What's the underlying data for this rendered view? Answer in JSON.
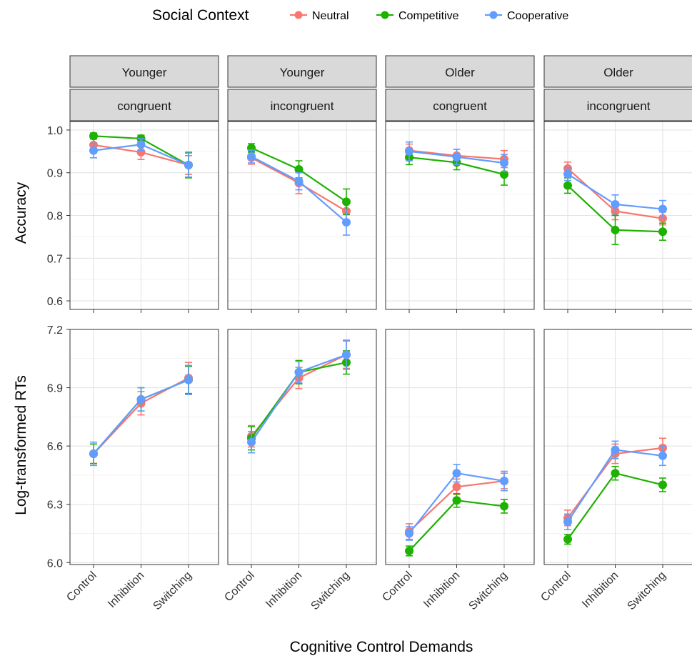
{
  "legend": {
    "title": "Social Context",
    "entries": [
      {
        "name": "Neutral",
        "color": "#F8766D"
      },
      {
        "name": "Competitive",
        "color": "#1DB100"
      },
      {
        "name": "Cooperative",
        "color": "#619CFF"
      }
    ]
  },
  "chart_data": {
    "type": "line",
    "xlabel": "Cognitive Control Demands",
    "categories": [
      "Control",
      "Inhibition",
      "Switching"
    ],
    "facet_columns": [
      {
        "group": "Younger",
        "condition": "congruent"
      },
      {
        "group": "Younger",
        "condition": "incongruent"
      },
      {
        "group": "Older",
        "condition": "congruent"
      },
      {
        "group": "Older",
        "condition": "incongruent"
      }
    ],
    "rows": [
      {
        "ylabel": "Accuracy",
        "ylim": [
          0.58,
          1.02
        ],
        "ticks": [
          "0.6",
          "0.7",
          "0.8",
          "0.9",
          "1.0"
        ],
        "tick_values": [
          0.6,
          0.7,
          0.8,
          0.9,
          1.0
        ],
        "panels": [
          {
            "series": [
              {
                "name": "Neutral",
                "values": [
                  0.965,
                  0.948,
                  0.918
                ],
                "err": [
                  0.018,
                  0.017,
                  0.022
                ]
              },
              {
                "name": "Competitive",
                "values": [
                  0.986,
                  0.98,
                  0.918
                ],
                "err": [
                  0.007,
                  0.008,
                  0.03
                ]
              },
              {
                "name": "Cooperative",
                "values": [
                  0.952,
                  0.966,
                  0.918
                ],
                "err": [
                  0.017,
                  0.014,
                  0.028
                ]
              }
            ]
          },
          {
            "series": [
              {
                "name": "Neutral",
                "values": [
                  0.935,
                  0.876,
                  0.81
                ],
                "err": [
                  0.015,
                  0.025,
                  0.022
                ]
              },
              {
                "name": "Competitive",
                "values": [
                  0.958,
                  0.908,
                  0.832
                ],
                "err": [
                  0.01,
                  0.02,
                  0.03
                ]
              },
              {
                "name": "Cooperative",
                "values": [
                  0.938,
                  0.88,
                  0.784
                ],
                "err": [
                  0.015,
                  0.02,
                  0.03
                ]
              }
            ]
          },
          {
            "series": [
              {
                "name": "Neutral",
                "values": [
                  0.952,
                  0.94,
                  0.932
                ],
                "err": [
                  0.015,
                  0.015,
                  0.02
                ]
              },
              {
                "name": "Competitive",
                "values": [
                  0.936,
                  0.924,
                  0.896
                ],
                "err": [
                  0.017,
                  0.017,
                  0.025
                ]
              },
              {
                "name": "Cooperative",
                "values": [
                  0.95,
                  0.937,
                  0.923
                ],
                "err": [
                  0.022,
                  0.018,
                  0.02
                ]
              }
            ]
          },
          {
            "series": [
              {
                "name": "Neutral",
                "values": [
                  0.91,
                  0.81,
                  0.793
                ],
                "err": [
                  0.015,
                  0.02,
                  0.015
                ]
              },
              {
                "name": "Competitive",
                "values": [
                  0.87,
                  0.766,
                  0.762
                ],
                "err": [
                  0.018,
                  0.034,
                  0.02
                ]
              },
              {
                "name": "Cooperative",
                "values": [
                  0.897,
                  0.826,
                  0.815
                ],
                "err": [
                  0.015,
                  0.022,
                  0.02
                ]
              }
            ]
          }
        ]
      },
      {
        "ylabel": "Log-transformed RTs",
        "ylim": [
          5.99,
          7.2
        ],
        "ticks": [
          "6.0",
          "6.3",
          "6.6",
          "6.9",
          "7.2"
        ],
        "tick_values": [
          6.0,
          6.3,
          6.6,
          6.9,
          7.2
        ],
        "panels": [
          {
            "series": [
              {
                "name": "Neutral",
                "values": [
                  6.56,
                  6.82,
                  6.95
                ],
                "err": [
                  0.05,
                  0.06,
                  0.08
                ]
              },
              {
                "name": "Competitive",
                "values": [
                  6.56,
                  6.84,
                  6.94
                ],
                "err": [
                  0.05,
                  0.06,
                  0.07
                ]
              },
              {
                "name": "Cooperative",
                "values": [
                  6.56,
                  6.84,
                  6.94
                ],
                "err": [
                  0.06,
                  0.06,
                  0.075
                ]
              }
            ]
          },
          {
            "series": [
              {
                "name": "Neutral",
                "values": [
                  6.65,
                  6.95,
                  7.07
                ],
                "err": [
                  0.055,
                  0.055,
                  0.07
                ]
              },
              {
                "name": "Competitive",
                "values": [
                  6.64,
                  6.98,
                  7.03
                ],
                "err": [
                  0.06,
                  0.06,
                  0.06
                ]
              },
              {
                "name": "Cooperative",
                "values": [
                  6.62,
                  6.98,
                  7.07
                ],
                "err": [
                  0.055,
                  0.055,
                  0.075
                ]
              }
            ]
          },
          {
            "series": [
              {
                "name": "Neutral",
                "values": [
                  6.16,
                  6.39,
                  6.42
                ],
                "err": [
                  0.04,
                  0.04,
                  0.04
                ]
              },
              {
                "name": "Competitive",
                "values": [
                  6.06,
                  6.32,
                  6.29
                ],
                "err": [
                  0.025,
                  0.035,
                  0.035
                ]
              },
              {
                "name": "Cooperative",
                "values": [
                  6.15,
                  6.46,
                  6.42
                ],
                "err": [
                  0.035,
                  0.045,
                  0.05
                ]
              }
            ]
          },
          {
            "series": [
              {
                "name": "Neutral",
                "values": [
                  6.23,
                  6.56,
                  6.59
                ],
                "err": [
                  0.04,
                  0.05,
                  0.05
                ]
              },
              {
                "name": "Competitive",
                "values": [
                  6.12,
                  6.46,
                  6.4
                ],
                "err": [
                  0.025,
                  0.035,
                  0.035
                ]
              },
              {
                "name": "Cooperative",
                "values": [
                  6.21,
                  6.58,
                  6.55
                ],
                "err": [
                  0.04,
                  0.045,
                  0.05
                ]
              }
            ]
          }
        ]
      }
    ]
  }
}
